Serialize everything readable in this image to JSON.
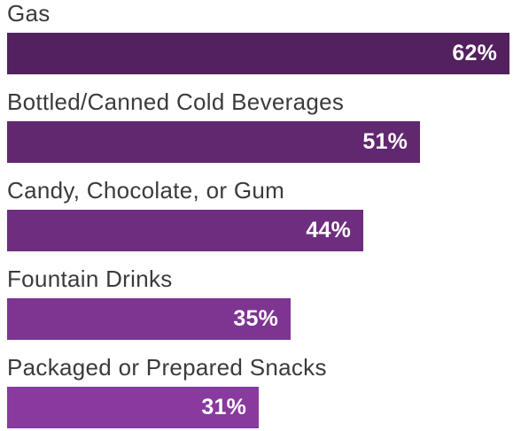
{
  "chart_data": {
    "type": "bar",
    "orientation": "horizontal",
    "categories": [
      "Gas",
      "Bottled/Canned Cold Beverages",
      "Candy, Chocolate, or Gum",
      "Fountain Drinks",
      "Packaged or Prepared Snacks"
    ],
    "values": [
      62,
      51,
      44,
      35,
      31
    ],
    "value_labels": [
      "62%",
      "51%",
      "44%",
      "35%",
      "31%"
    ],
    "xlim": [
      0,
      62
    ],
    "bar_colors": [
      "#53215e",
      "#62286f",
      "#6f2d80",
      "#7e3592",
      "#893a9e"
    ],
    "title": "",
    "xlabel": "",
    "ylabel": "",
    "grid": false,
    "legend": "none"
  }
}
